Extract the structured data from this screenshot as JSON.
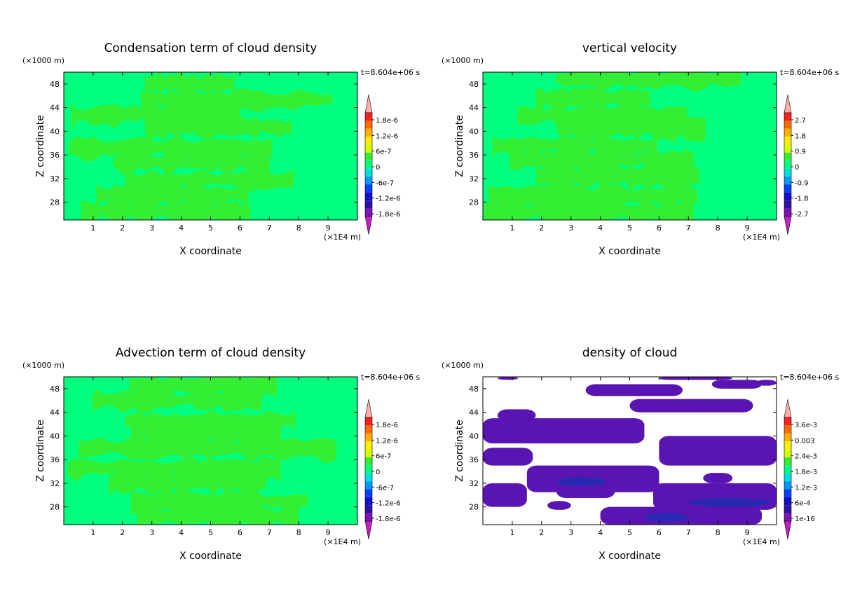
{
  "chart_data": [
    {
      "type": "heatmap",
      "title": "Condensation term of cloud density",
      "xlabel": "X coordinate",
      "ylabel": "Z coordinate",
      "x_multiplier": "(×1E4 m)",
      "y_multiplier": "(×1000 m)",
      "time_label": "t=8.604e+06 s",
      "x_ticks": [
        "1",
        "2",
        "3",
        "4",
        "5",
        "6",
        "7",
        "8",
        "9"
      ],
      "y_ticks": [
        "48",
        "44",
        "40",
        "36",
        "32",
        "28"
      ],
      "xlim": [
        0,
        10
      ],
      "ylim": [
        25,
        50
      ],
      "colorbar_labels": [
        "1.8e-6",
        "1.2e-6",
        "6e-7",
        "0",
        "-6e-7",
        "-1.2e-6",
        "-1.8e-6"
      ],
      "field_colors": [
        "#00ff7f",
        "#33ee33"
      ],
      "field_description": "near-zero values, banded"
    },
    {
      "type": "heatmap",
      "title": "vertical velocity",
      "xlabel": "X coordinate",
      "ylabel": "Z coordinate",
      "x_multiplier": "(×1E4 m)",
      "y_multiplier": "(×1000 m)",
      "time_label": "t=8.604e+06 s",
      "x_ticks": [
        "1",
        "2",
        "3",
        "4",
        "5",
        "6",
        "7",
        "8",
        "9"
      ],
      "y_ticks": [
        "48",
        "44",
        "40",
        "36",
        "32",
        "28"
      ],
      "xlim": [
        0,
        10
      ],
      "ylim": [
        25,
        50
      ],
      "colorbar_labels": [
        "2.7",
        "1.8",
        "0.9",
        "0",
        "-0.9",
        "-1.8",
        "-2.7"
      ],
      "field_colors": [
        "#00ff7f",
        "#33ee33"
      ]
    },
    {
      "type": "heatmap",
      "title": "Advection term of cloud density",
      "xlabel": "X coordinate",
      "ylabel": "Z coordinate",
      "x_multiplier": "(×1E4 m)",
      "y_multiplier": "(×1000 m)",
      "time_label": "t=8.604e+06 s",
      "x_ticks": [
        "1",
        "2",
        "3",
        "4",
        "5",
        "6",
        "7",
        "8",
        "9"
      ],
      "y_ticks": [
        "48",
        "44",
        "40",
        "36",
        "32",
        "28"
      ],
      "xlim": [
        0,
        10
      ],
      "ylim": [
        25,
        50
      ],
      "colorbar_labels": [
        "1.8e-6",
        "1.2e-6",
        "6e-7",
        "0",
        "-6e-7",
        "-1.2e-6",
        "-1.8e-6"
      ],
      "field_colors": [
        "#00ff7f",
        "#33ee33"
      ]
    },
    {
      "type": "heatmap",
      "title": "density of cloud",
      "xlabel": "X coordinate",
      "ylabel": "Z coordinate",
      "x_multiplier": "(×1E4 m)",
      "y_multiplier": "(×1000 m)",
      "time_label": "t=8.604e+06 s",
      "x_ticks": [
        "1",
        "2",
        "3",
        "4",
        "5",
        "6",
        "7",
        "8",
        "9"
      ],
      "y_ticks": [
        "48",
        "44",
        "40",
        "36",
        "32",
        "28"
      ],
      "xlim": [
        0,
        10
      ],
      "ylim": [
        25,
        50
      ],
      "colorbar_labels": [
        "3.6e-3",
        "0.003",
        "2.4e-3",
        "1.8e-3",
        "1.2e-3",
        "6e-4",
        "1e-16"
      ],
      "field_colors": [
        "#ffffff",
        "#5a14b4",
        "#2828b4"
      ]
    }
  ],
  "colorbar_colors": [
    "#ffb0a8",
    "#ff2020",
    "#ff6a00",
    "#ffb000",
    "#ffee00",
    "#d4ff00",
    "#33ee33",
    "#00ff7f",
    "#00e0e0",
    "#0099ff",
    "#0040ff",
    "#1010c8",
    "#3010a0",
    "#8010b8",
    "#c020c0"
  ]
}
